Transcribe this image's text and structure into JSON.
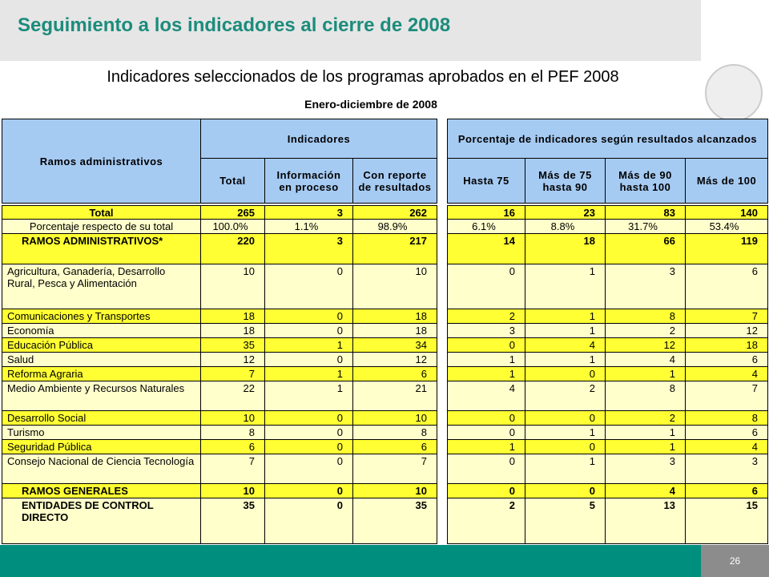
{
  "header": {
    "title": "Seguimiento a los indicadores al cierre de 2008",
    "subtitle": "Indicadores seleccionados de los programas aprobados en el PEF 2008",
    "period": "Enero-diciembre de 2008"
  },
  "table": {
    "ramos": "Ramos administrativos",
    "indicadores": "Indicadores",
    "porcentaje": "Porcentaje de indicadores según resultados alcanzados",
    "columns": [
      "Total",
      "Información en proceso",
      "Con reporte de resultados",
      "Hasta 75",
      "Más de 75 hasta 90",
      "Más de 90 hasta 100",
      "Más de 100"
    ],
    "rows": [
      {
        "label": "Total",
        "cells": [
          265,
          3,
          262,
          16,
          23,
          83,
          140
        ]
      },
      {
        "label": "Porcentaje respecto de su total",
        "cells": [
          "100.0%",
          "1.1%",
          "98.9%",
          "6.1%",
          "8.8%",
          "31.7%",
          "53.4%"
        ]
      },
      {
        "label": "RAMOS ADMINISTRATIVOS*",
        "cells": [
          220,
          3,
          217,
          14,
          18,
          66,
          119
        ]
      },
      {
        "label": "Agricultura, Ganadería, Desarrollo Rural, Pesca y Alimentación",
        "cells": [
          10,
          0,
          10,
          0,
          1,
          3,
          6
        ]
      },
      {
        "label": "Comunicaciones y Transportes",
        "cells": [
          18,
          0,
          18,
          2,
          1,
          8,
          7
        ]
      },
      {
        "label": "Economía",
        "cells": [
          18,
          0,
          18,
          3,
          1,
          2,
          12
        ]
      },
      {
        "label": "Educación Pública",
        "cells": [
          35,
          1,
          34,
          0,
          4,
          12,
          18
        ]
      },
      {
        "label": "Salud",
        "cells": [
          12,
          0,
          12,
          1,
          1,
          4,
          6
        ]
      },
      {
        "label": "Reforma Agraria",
        "cells": [
          7,
          1,
          6,
          1,
          0,
          1,
          4
        ]
      },
      {
        "label": "Medio Ambiente y Recursos Naturales",
        "cells": [
          22,
          1,
          21,
          4,
          2,
          8,
          7
        ]
      },
      {
        "label": "Desarrollo Social",
        "cells": [
          10,
          0,
          10,
          0,
          0,
          2,
          8
        ]
      },
      {
        "label": "Turismo",
        "cells": [
          8,
          0,
          8,
          0,
          1,
          1,
          6
        ]
      },
      {
        "label": "Seguridad Pública",
        "cells": [
          6,
          0,
          6,
          1,
          0,
          1,
          4
        ]
      },
      {
        "label": "Consejo Nacional de Ciencia Tecnología",
        "cells": [
          7,
          0,
          7,
          0,
          1,
          3,
          3
        ]
      },
      {
        "label": "RAMOS GENERALES",
        "cells": [
          10,
          0,
          10,
          0,
          0,
          4,
          6
        ]
      },
      {
        "label": "ENTIDADES DE CONTROL DIRECTO",
        "cells": [
          35,
          0,
          35,
          2,
          5,
          13,
          15
        ]
      }
    ]
  },
  "footer": {
    "page": "26"
  }
}
